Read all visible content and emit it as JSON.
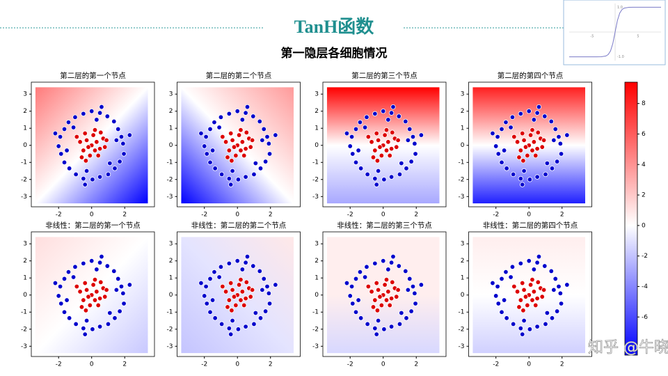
{
  "title": "TanH函数",
  "subtitle": "第一隐层各细胞情况",
  "watermark": "知乎 @牛晓杰",
  "scatter_data": {
    "series": [
      {
        "color": "#0000cc",
        "x": [
          1.9,
          1.8,
          1.6,
          1.35,
          0.95,
          0.5,
          0.0,
          -0.5,
          -1.0,
          -1.4,
          -1.65,
          -1.9,
          -2.0,
          -1.85,
          -1.65,
          -1.35,
          -0.95,
          -0.5,
          0.05,
          0.5,
          1.0,
          1.4,
          1.7,
          1.95,
          1.5,
          0.3,
          -1.5,
          -0.3,
          1.1,
          -1.1,
          2.3,
          -2.2,
          0.6,
          -0.4
        ],
        "y": [
          0.1,
          0.5,
          0.95,
          1.4,
          1.7,
          1.9,
          2.0,
          1.85,
          1.65,
          1.35,
          0.95,
          0.5,
          -0.05,
          -0.5,
          -1.0,
          -1.35,
          -1.7,
          -1.95,
          -2.0,
          -1.85,
          -1.7,
          -1.35,
          -0.95,
          -0.5,
          0.3,
          1.5,
          -0.3,
          -1.5,
          -1.05,
          1.05,
          0.6,
          0.7,
          2.25,
          -2.3
        ]
      },
      {
        "color": "#dd0000",
        "x": [
          0,
          0.3,
          -0.3,
          0.5,
          -0.5,
          0.1,
          -0.1,
          0.7,
          -0.7,
          0.4,
          -0.4,
          0.2,
          -0.2,
          0.8,
          -0.6,
          0.55,
          -0.9,
          0.2,
          -0.35,
          0.9
        ],
        "y": [
          0,
          0.2,
          0.3,
          -0.2,
          -0.3,
          0.6,
          -0.6,
          0.4,
          0.2,
          -0.6,
          0.7,
          -0.3,
          -0.1,
          -0.1,
          -0.7,
          0.75,
          0.5,
          0.9,
          -0.9,
          0.3
        ]
      }
    ]
  },
  "chart_data": [
    {
      "type": "scatter",
      "title": "第二层的第一个节点",
      "xlim": [
        -3.65,
        3.8
      ],
      "ylim": [
        -3.6,
        3.7
      ],
      "xticks": [
        -2,
        0,
        2
      ],
      "yticks": [
        -3,
        -2,
        -1,
        0,
        1,
        2,
        3
      ],
      "mesh_extent": [
        -3.4,
        3.4
      ],
      "gradient_direction": "to bottom right",
      "gradient_colors": [
        "#ff7a7a",
        "#ffffff",
        "#0000ff"
      ]
    },
    {
      "type": "scatter",
      "title": "第二层的第二个节点",
      "xlim": [
        -3.65,
        3.8
      ],
      "ylim": [
        -3.6,
        3.7
      ],
      "xticks": [
        -2,
        0,
        2
      ],
      "yticks": [
        -3,
        -2,
        -1,
        0,
        1,
        2,
        3
      ],
      "mesh_extent": [
        -3.4,
        3.4
      ],
      "gradient_direction": "to bottom left",
      "gradient_colors": [
        "#ff9a9a",
        "#ffffff",
        "#0000ff"
      ]
    },
    {
      "type": "scatter",
      "title": "第二层的第三个节点",
      "xlim": [
        -3.65,
        3.8
      ],
      "ylim": [
        -3.6,
        3.7
      ],
      "xticks": [
        -2,
        0,
        2
      ],
      "yticks": [
        -3,
        -2,
        -1,
        0,
        1,
        2,
        3
      ],
      "mesh_extent": [
        -3.4,
        3.4
      ],
      "gradient_direction": "to bottom",
      "gradient_colors": [
        "#ff0000",
        "#ffffff",
        "#a8a8ff"
      ]
    },
    {
      "type": "scatter",
      "title": "第二层的第四个节点",
      "xlim": [
        -3.65,
        3.8
      ],
      "ylim": [
        -3.6,
        3.7
      ],
      "xticks": [
        -2,
        0,
        2
      ],
      "yticks": [
        -3,
        -2,
        -1,
        0,
        1,
        2,
        3
      ],
      "mesh_extent": [
        -3.4,
        3.4
      ],
      "gradient_direction": "to bottom",
      "gradient_colors": [
        "#ff2020",
        "#ffffff",
        "#2020ff"
      ]
    },
    {
      "type": "scatter",
      "title": "非线性：第二层的第一个节点",
      "xlim": [
        -3.65,
        3.8
      ],
      "ylim": [
        -3.6,
        3.7
      ],
      "xticks": [
        -2,
        0,
        2
      ],
      "yticks": [
        -3,
        -2,
        -1,
        0,
        1,
        2,
        3
      ],
      "mesh_extent": [
        -3.4,
        3.4
      ],
      "gradient_direction": "to bottom right",
      "gradient_colors": [
        "#ffdede",
        "#ffffff",
        "#c8c8ff"
      ]
    },
    {
      "type": "scatter",
      "title": "非线性：第二层的第二个节点",
      "xlim": [
        -3.65,
        3.8
      ],
      "ylim": [
        -3.6,
        3.7
      ],
      "xticks": [
        -2,
        0,
        2
      ],
      "yticks": [
        -3,
        -2,
        -1,
        0,
        1,
        2,
        3
      ],
      "mesh_extent": [
        -3.4,
        3.4
      ],
      "gradient_direction": "to bottom left",
      "gradient_colors": [
        "#ffe8e8",
        "#e4e4ff",
        "#c4c4ff"
      ]
    },
    {
      "type": "scatter",
      "title": "非线性：第二层的第三个节点",
      "xlim": [
        -3.65,
        3.8
      ],
      "ylim": [
        -3.6,
        3.7
      ],
      "xticks": [
        -2,
        0,
        2
      ],
      "yticks": [
        -3,
        -2,
        -1,
        0,
        1,
        2,
        3
      ],
      "mesh_extent": [
        -3.4,
        3.4
      ],
      "gradient_direction": "to bottom",
      "gradient_colors": [
        "#ffeeee",
        "#ffeeee",
        "#d8d8ff"
      ]
    },
    {
      "type": "scatter",
      "title": "非线性：第二层的第四个节点",
      "xlim": [
        -3.65,
        3.8
      ],
      "ylim": [
        -3.6,
        3.7
      ],
      "xticks": [
        -2,
        0,
        2
      ],
      "yticks": [
        -3,
        -2,
        -1,
        0,
        1,
        2,
        3
      ],
      "mesh_extent": [
        -3.4,
        3.4
      ],
      "gradient_direction": "to bottom",
      "gradient_colors": [
        "#ffeeee",
        "#ffffff",
        "#d0d0ff"
      ]
    },
    {
      "type": "colorbar",
      "ylim": [
        -8.5,
        9.4
      ],
      "yticks": [
        -6,
        -4,
        -2,
        0,
        2,
        4,
        6,
        8
      ],
      "gradient_colors": [
        "#ff0000",
        "#ffffff",
        "#0000ff"
      ]
    },
    {
      "type": "line",
      "xlim": [
        -10,
        10
      ],
      "ylim": [
        -1.15,
        1.15
      ],
      "xticks": [
        -5,
        5
      ],
      "yticks": [
        {
          "value": 1,
          "label": "1.0"
        },
        {
          "value": -1,
          "label": "-1.0"
        }
      ],
      "color": "#7a7ac8",
      "x": [
        -10,
        -6,
        -4,
        -3,
        -2,
        -1.5,
        -1,
        -0.5,
        0,
        0.5,
        1,
        1.5,
        2,
        3,
        4,
        6,
        10
      ],
      "values": [
        -1,
        -1,
        -0.999,
        -0.995,
        -0.964,
        -0.905,
        -0.762,
        -0.462,
        0,
        0.462,
        0.762,
        0.905,
        0.964,
        0.995,
        0.999,
        1,
        1
      ]
    }
  ]
}
